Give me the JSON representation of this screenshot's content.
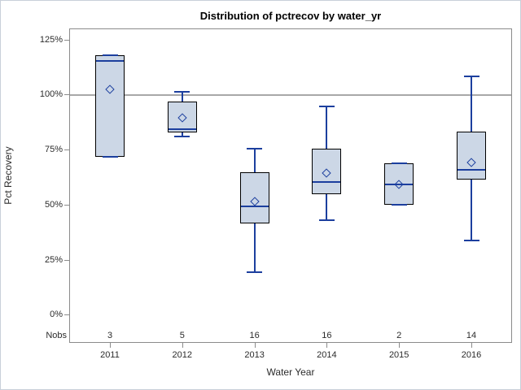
{
  "title": "Distribution of pctrecov by water_yr",
  "y_axis": {
    "label": "Pct Recovery",
    "tick_labels": [
      "0%",
      "25%",
      "50%",
      "75%",
      "100%",
      "125%"
    ],
    "tick_values": [
      0,
      25,
      50,
      75,
      100,
      125
    ]
  },
  "x_axis": {
    "label": "Water Year",
    "categories": [
      "2011",
      "2012",
      "2013",
      "2014",
      "2015",
      "2016"
    ]
  },
  "nobs_row_label": "Nobs",
  "colors": {
    "box_fill": "#ccd7e6",
    "box_border": "#000000",
    "line_blue": "#1c3f9e",
    "reference_line": "#a8a8a8",
    "plot_border": "#8b8b8b",
    "tick_text": "#2b2b2b",
    "frame_border": "#c9d0da",
    "background": "#ffffff"
  },
  "chart_data": {
    "type": "box",
    "title": "Distribution of pctrecov by water_yr",
    "xlabel": "Water Year",
    "ylabel": "Pct Recovery",
    "categories": [
      "2011",
      "2012",
      "2013",
      "2014",
      "2015",
      "2016"
    ],
    "y_ticks": [
      0,
      25,
      50,
      75,
      100,
      125
    ],
    "ylim": [
      -12.5,
      130.5
    ],
    "reference_line": 100,
    "grid": false,
    "boxes": [
      {
        "category": "2011",
        "nobs": "3",
        "min": 72,
        "q1": 72,
        "median": 115.5,
        "q3": 118,
        "max": 118,
        "mean": 102.5
      },
      {
        "category": "2012",
        "nobs": "5",
        "min": 81,
        "q1": 83,
        "median": 84.5,
        "q3": 97,
        "max": 101.5,
        "mean": 89.5
      },
      {
        "category": "2013",
        "nobs": "16",
        "min": 19.5,
        "q1": 41.5,
        "median": 49.5,
        "q3": 65,
        "max": 75.5,
        "mean": 51.5
      },
      {
        "category": "2014",
        "nobs": "16",
        "min": 43,
        "q1": 55,
        "median": 60.5,
        "q3": 75.5,
        "max": 95,
        "mean": 64.5
      },
      {
        "category": "2015",
        "nobs": "2",
        "min": 50,
        "q1": 50,
        "median": 59.5,
        "q3": 69,
        "max": 69,
        "mean": 59.5
      },
      {
        "category": "2016",
        "nobs": "14",
        "min": 34,
        "q1": 61.5,
        "median": 66,
        "q3": 83.5,
        "max": 108.5,
        "mean": 69.5
      }
    ]
  }
}
